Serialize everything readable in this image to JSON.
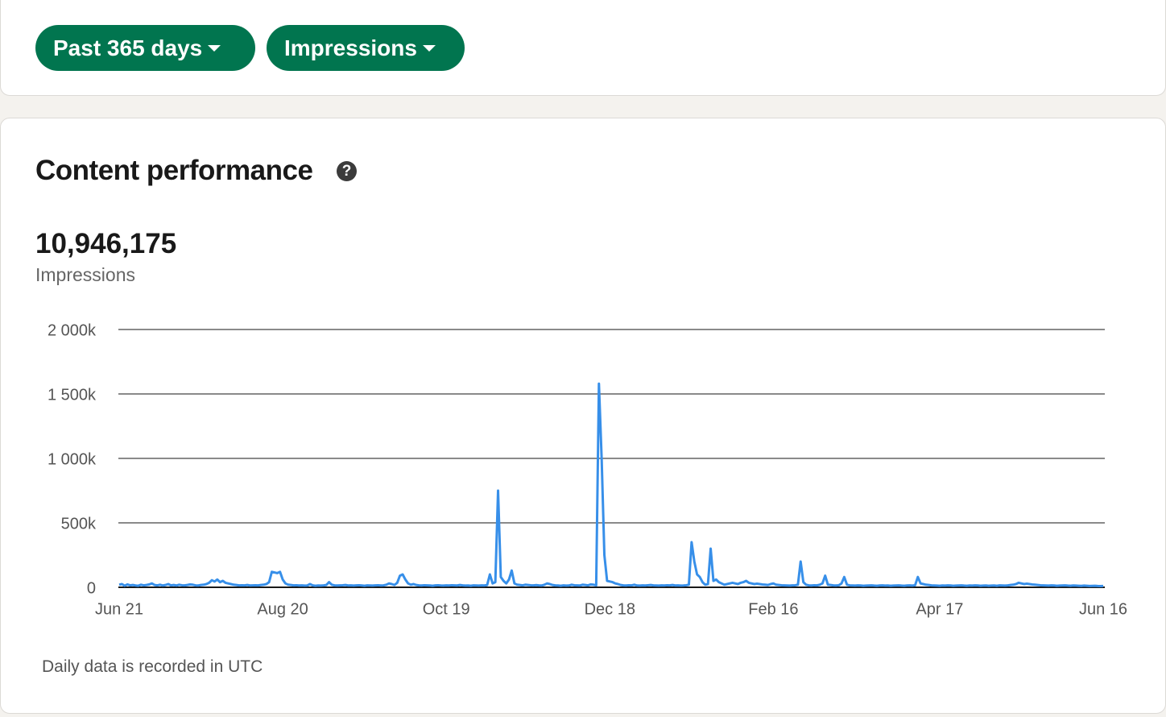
{
  "filters": [
    "Past 365 days",
    "Impressions"
  ],
  "card": {
    "title": "Content performance",
    "total": "10,946,175",
    "total_label": "Impressions",
    "footnote": "Daily data is recorded in UTC"
  },
  "chart_data": {
    "type": "line",
    "color": "#378fe9",
    "grid": true,
    "ylim": [
      0,
      2000000
    ],
    "yticks": [
      0,
      {
        "value": 500000,
        "label": "500k"
      },
      {
        "value": 1000000,
        "label": "1 000k"
      },
      {
        "value": 1500000,
        "label": "1 500k"
      },
      {
        "value": 2000000,
        "label": "2 000k"
      }
    ],
    "categories": [
      "Jun 21",
      null,
      null,
      null,
      null,
      null,
      null,
      null,
      null,
      null,
      null,
      null,
      null,
      null,
      null,
      null,
      null,
      null,
      null,
      null,
      null,
      null,
      null,
      null,
      null,
      null,
      null,
      null,
      null,
      null,
      null,
      null,
      null,
      null,
      null,
      null,
      null,
      null,
      null,
      null,
      null,
      null,
      null,
      null,
      null,
      null,
      null,
      null,
      null,
      null,
      null,
      null,
      null,
      null,
      null,
      null,
      null,
      null,
      null,
      null,
      "Aug 20",
      null,
      null,
      null,
      null,
      null,
      null,
      null,
      null,
      null,
      null,
      null,
      null,
      null,
      null,
      null,
      null,
      null,
      null,
      null,
      null,
      null,
      null,
      null,
      null,
      null,
      null,
      null,
      null,
      null,
      null,
      null,
      null,
      null,
      null,
      null,
      null,
      null,
      null,
      null,
      null,
      null,
      null,
      null,
      null,
      null,
      null,
      null,
      null,
      null,
      null,
      null,
      null,
      null,
      null,
      null,
      null,
      null,
      null,
      null,
      "Oct 19",
      null,
      null,
      null,
      null,
      null,
      null,
      null,
      null,
      null,
      null,
      null,
      null,
      null,
      null,
      null,
      null,
      null,
      null,
      null,
      null,
      null,
      null,
      null,
      null,
      null,
      null,
      null,
      null,
      null,
      null,
      null,
      null,
      null,
      null,
      null,
      null,
      null,
      null,
      null,
      null,
      null,
      null,
      null,
      null,
      null,
      null,
      null,
      null,
      null,
      null,
      null,
      null,
      null,
      null,
      null,
      null,
      null,
      null,
      null,
      "Dec 18",
      null,
      null,
      null,
      null,
      null,
      null,
      null,
      null,
      null,
      null,
      null,
      null,
      null,
      null,
      null,
      null,
      null,
      null,
      null,
      null,
      null,
      null,
      null,
      null,
      null,
      null,
      null,
      null,
      null,
      null,
      null,
      null,
      null,
      null,
      null,
      null,
      null,
      null,
      null,
      null,
      null,
      null,
      null,
      null,
      null,
      null,
      null,
      null,
      null,
      null,
      null,
      null,
      null,
      null,
      null,
      null,
      null,
      null,
      null,
      "Feb 16",
      null,
      null,
      null,
      null,
      null,
      null,
      null,
      null,
      null,
      null,
      null,
      null,
      null,
      null,
      null,
      null,
      null,
      null,
      null,
      null,
      null,
      null,
      null,
      null,
      null,
      null,
      null,
      null,
      null,
      null,
      null,
      null,
      null,
      null,
      null,
      null,
      null,
      null,
      null,
      null,
      null,
      null,
      null,
      null,
      null,
      null,
      null,
      null,
      null,
      null,
      null,
      null,
      null,
      null,
      null,
      null,
      null,
      null,
      null,
      null,
      "Apr 17",
      null,
      null,
      null,
      null,
      null,
      null,
      null,
      null,
      null,
      null,
      null,
      null,
      null,
      null,
      null,
      null,
      null,
      null,
      null,
      null,
      null,
      null,
      null,
      null,
      null,
      null,
      null,
      null,
      null,
      null,
      null,
      null,
      null,
      null,
      null,
      null,
      null,
      null,
      null,
      null,
      null,
      null,
      null,
      null,
      null,
      null,
      null,
      null,
      null,
      null,
      null,
      null,
      null,
      null,
      null,
      null,
      null,
      null,
      null,
      "Jun 16"
    ],
    "values": [
      20000,
      25000,
      12000,
      22000,
      15000,
      18000,
      14000,
      12000,
      20000,
      15000,
      18000,
      22000,
      30000,
      18000,
      15000,
      20000,
      14000,
      18000,
      25000,
      15000,
      18000,
      14000,
      20000,
      16000,
      15000,
      18000,
      22000,
      20000,
      15000,
      14000,
      18000,
      20000,
      25000,
      35000,
      55000,
      45000,
      60000,
      40000,
      50000,
      35000,
      30000,
      25000,
      20000,
      18000,
      15000,
      16000,
      15000,
      18000,
      14000,
      15000,
      16000,
      15000,
      18000,
      20000,
      25000,
      40000,
      120000,
      115000,
      110000,
      120000,
      60000,
      30000,
      20000,
      18000,
      15000,
      16000,
      14000,
      15000,
      13000,
      14000,
      25000,
      15000,
      12000,
      14000,
      13000,
      15000,
      18000,
      40000,
      20000,
      15000,
      14000,
      15000,
      16000,
      18000,
      14000,
      15000,
      13000,
      15000,
      16000,
      14000,
      12000,
      15000,
      14000,
      13000,
      15000,
      16000,
      14000,
      15000,
      20000,
      30000,
      25000,
      18000,
      35000,
      90000,
      100000,
      60000,
      30000,
      20000,
      25000,
      18000,
      15000,
      14000,
      16000,
      15000,
      14000,
      12000,
      15000,
      16000,
      14000,
      13000,
      15000,
      14000,
      16000,
      15000,
      14000,
      18000,
      15000,
      13000,
      14000,
      12000,
      15000,
      14000,
      13000,
      15000,
      14000,
      18000,
      100000,
      30000,
      40000,
      750000,
      80000,
      50000,
      30000,
      60000,
      130000,
      30000,
      20000,
      18000,
      15000,
      20000,
      18000,
      16000,
      15000,
      17000,
      15000,
      14000,
      20000,
      30000,
      25000,
      18000,
      15000,
      14000,
      12000,
      15000,
      13000,
      14000,
      20000,
      16000,
      15000,
      14000,
      20000,
      18000,
      15000,
      22000,
      20000,
      15000,
      1580000,
      1000000,
      250000,
      50000,
      45000,
      40000,
      30000,
      25000,
      18000,
      15000,
      14000,
      16000,
      15000,
      20000,
      14000,
      13000,
      15000,
      14000,
      16000,
      18000,
      15000,
      14000,
      13000,
      15000,
      14000,
      16000,
      15000,
      18000,
      14000,
      15000,
      13000,
      14000,
      16000,
      20000,
      350000,
      200000,
      100000,
      80000,
      40000,
      20000,
      25000,
      300000,
      50000,
      60000,
      40000,
      30000,
      20000,
      25000,
      30000,
      35000,
      30000,
      25000,
      35000,
      40000,
      50000,
      35000,
      30000,
      25000,
      28000,
      25000,
      22000,
      20000,
      18000,
      25000,
      30000,
      20000,
      18000,
      16000,
      15000,
      14000,
      13000,
      15000,
      16000,
      20000,
      200000,
      40000,
      20000,
      15000,
      14000,
      16000,
      15000,
      20000,
      30000,
      90000,
      20000,
      18000,
      15000,
      14000,
      16000,
      30000,
      80000,
      20000,
      15000,
      14000,
      13000,
      15000,
      14000,
      12000,
      13000,
      14000,
      15000,
      13000,
      12000,
      14000,
      15000,
      13000,
      14000,
      12000,
      13000,
      14000,
      15000,
      13000,
      12000,
      14000,
      15000,
      13000,
      16000,
      80000,
      30000,
      25000,
      20000,
      18000,
      15000,
      14000,
      13000,
      12000,
      14000,
      13000,
      15000,
      14000,
      12000,
      13000,
      14000,
      15000,
      13000,
      12000,
      14000,
      13000,
      15000,
      14000,
      12000,
      13000,
      14000,
      12000,
      13000,
      14000,
      12000,
      15000,
      14000,
      13000,
      15000,
      18000,
      20000,
      25000,
      35000,
      30000,
      25000,
      28000,
      25000,
      22000,
      20000,
      18000,
      16000,
      15000,
      14000,
      13000,
      15000,
      14000,
      12000,
      13000,
      14000,
      15000,
      13000,
      12000,
      14000,
      13000,
      12000,
      11000,
      13000,
      12000,
      10000,
      11000,
      12000,
      10000,
      9000,
      10000
    ]
  }
}
